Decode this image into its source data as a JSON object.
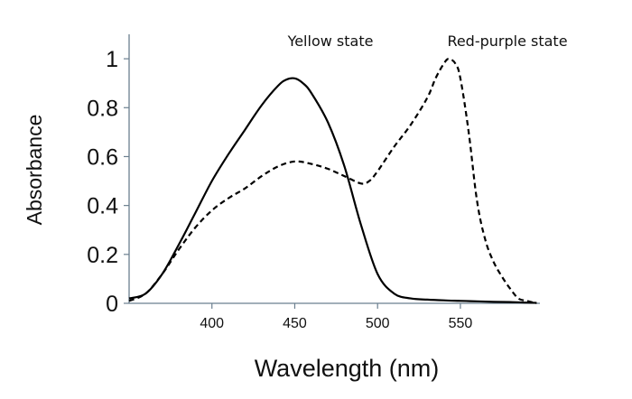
{
  "chart_data": {
    "type": "line",
    "title": "",
    "xlabel": "Wavelength (nm)",
    "ylabel": "Absorbance",
    "xlim": [
      350,
      598
    ],
    "ylim": [
      0,
      1.1
    ],
    "x_ticks": [
      400,
      450,
      500,
      550
    ],
    "y_ticks": [
      0,
      0.2,
      0.4,
      0.6,
      0.8,
      1
    ],
    "x_tick_labels": [
      "400",
      "450",
      "500",
      "550"
    ],
    "y_tick_labels": [
      "0",
      "0.2",
      "0.4",
      "0.6",
      "0.8",
      "1"
    ],
    "grid": false,
    "legend": "none",
    "annotations": [
      {
        "text": "Yellow state",
        "series": 0
      },
      {
        "text": "Red-purple state",
        "series": 1
      }
    ],
    "series": [
      {
        "name": "Yellow state",
        "style": "solid",
        "color": "#000000",
        "x": [
          350,
          360,
          370,
          380,
          390,
          400,
          410,
          420,
          430,
          440,
          445,
          450,
          455,
          460,
          470,
          480,
          490,
          500,
          510,
          520,
          530,
          540,
          550,
          560,
          570,
          580,
          590,
          596
        ],
        "y": [
          0.02,
          0.04,
          0.12,
          0.24,
          0.37,
          0.5,
          0.61,
          0.71,
          0.81,
          0.89,
          0.915,
          0.92,
          0.9,
          0.86,
          0.74,
          0.56,
          0.32,
          0.12,
          0.04,
          0.02,
          0.015,
          0.012,
          0.01,
          0.008,
          0.006,
          0.005,
          0.003,
          0.002
        ]
      },
      {
        "name": "Red-purple state",
        "style": "dashed",
        "color": "#000000",
        "x": [
          350,
          360,
          370,
          380,
          390,
          400,
          410,
          420,
          430,
          440,
          450,
          460,
          470,
          480,
          490,
          495,
          500,
          510,
          520,
          530,
          535,
          540,
          543,
          547,
          550,
          555,
          560,
          565,
          570,
          575,
          580,
          585,
          590,
          596
        ],
        "y": [
          0.01,
          0.04,
          0.12,
          0.22,
          0.31,
          0.38,
          0.43,
          0.47,
          0.52,
          0.56,
          0.58,
          0.57,
          0.55,
          0.52,
          0.49,
          0.5,
          0.54,
          0.64,
          0.73,
          0.84,
          0.92,
          0.98,
          1.0,
          0.98,
          0.92,
          0.7,
          0.42,
          0.26,
          0.17,
          0.11,
          0.06,
          0.02,
          0.01,
          0.0
        ]
      }
    ]
  }
}
